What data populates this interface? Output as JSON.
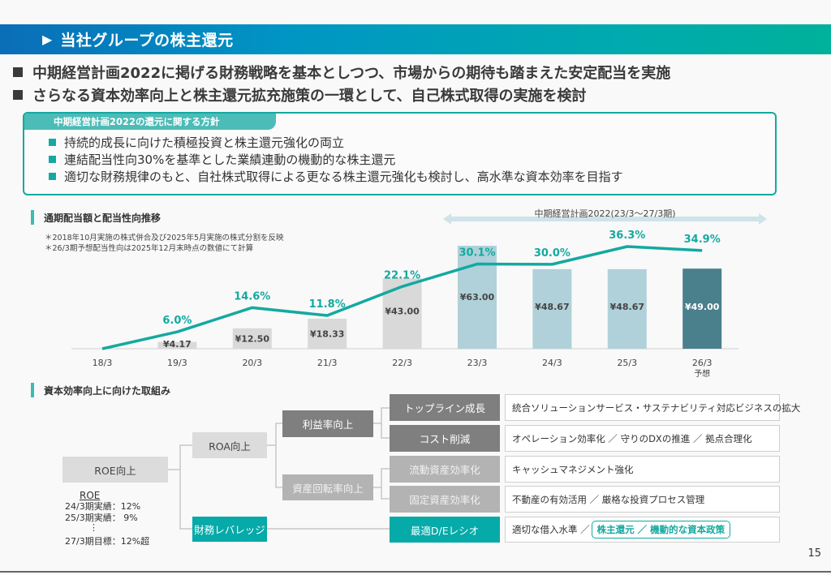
{
  "header": {
    "title": "当社グループの株主還元",
    "icon": "play-triangle-icon"
  },
  "leads": [
    "中期経営計画2022に掲げる財務戦略を基本としつつ、市場からの期待も踏まえた安定配当を実施",
    "さらなる資本効率向上と株主還元拡充施策の一環として、自己株式取得の実施を検討"
  ],
  "policy": {
    "tab_label": "中期経営計画2022の還元に関する方針",
    "items": [
      "持続的成長に向けた積極投資と株主還元強化の両立",
      "連結配当性向30%を基準とした業績連動の機動的な株主還元",
      "適切な財務規律のもと、自社株式取得による更なる株主還元強化も検討し、高水準な資本効率を目指す"
    ]
  },
  "dividend_section": {
    "title": "通期配当額と配当性向推移",
    "notes": [
      "＊2018年10月実施の株式併合及び2025年5月実施の株式分割を反映",
      "＊26/3期予想配当性向は2025年12月末時点の数値にて計算"
    ]
  },
  "chart_data": {
    "type": "bar",
    "title": "通期配当額と配当性向推移",
    "categories": [
      "18/3",
      "19/3",
      "20/3",
      "21/3",
      "22/3",
      "23/3",
      "24/3",
      "25/3",
      "26/3"
    ],
    "category_sublabels": [
      "",
      "",
      "",
      "",
      "",
      "",
      "",
      "",
      "予想"
    ],
    "period_annotation": "中期経営計画2022(23/3～27/3期)",
    "period_start_category": "23/3",
    "series": [
      {
        "name": "年間配当額",
        "kind": "bar",
        "values": [
          0,
          4.17,
          12.5,
          18.33,
          43.0,
          63.0,
          48.67,
          48.67,
          49.0
        ],
        "labels": [
          "",
          "¥4.17",
          "¥12.50",
          "¥18.33",
          "¥43.00",
          "¥63.00",
          "¥48.67",
          "¥48.67",
          "¥49.00"
        ],
        "colors": [
          "#d9d9d9",
          "#d9d9d9",
          "#d9d9d9",
          "#d9d9d9",
          "#d9d9d9",
          "#b0d1d9",
          "#b0d1d9",
          "#b0d1d9",
          "#4a7f8c"
        ],
        "label_colors": [
          "#444444",
          "#444444",
          "#444444",
          "#444444",
          "#444444",
          "#444444",
          "#444444",
          "#444444",
          "#ffffff"
        ]
      },
      {
        "name": "配当性向",
        "kind": "line",
        "color": "#14a9a0",
        "values": [
          0.0,
          6.0,
          14.6,
          11.8,
          22.1,
          30.1,
          30.0,
          36.3,
          34.9
        ],
        "labels": [
          "",
          "6.0%",
          "14.6%",
          "11.8%",
          "22.1%",
          "30.1%",
          "30.0%",
          "36.3%",
          "34.9%"
        ]
      }
    ],
    "xlabel": "",
    "ylabel": "",
    "grid": false,
    "legend": "none"
  },
  "efficiency_section": {
    "title": "資本効率向上に向けた取組み",
    "root": "ROE向上",
    "level1": [
      "ROA向上",
      "財務レバレッジ"
    ],
    "level2": [
      "利益率向上",
      "資産回転率向上"
    ],
    "level3": [
      "トップライン成長",
      "コスト削減",
      "流動資産効率化",
      "固定資産効率化",
      "最適D/Eレシオ"
    ],
    "descriptions": [
      "統合ソリューションサービス・サステナビリティ対応ビジネスの拡大",
      "オペレーション効率化 ／ 守りのDXの推進 ／ 拠点合理化",
      "キャッシュマネジメント強化",
      "不動産の有効活用 ／ 厳格な投資プロセス管理",
      "適切な借入水準 ／"
    ],
    "highlight": "株主還元 ／ 機動的な資本政策",
    "roe": {
      "heading": "ROE",
      "lines": [
        "24/3期実績：12%",
        "25/3期実績：  9%",
        "：",
        "27/3期目標：12%超"
      ]
    }
  },
  "page_number": "15"
}
